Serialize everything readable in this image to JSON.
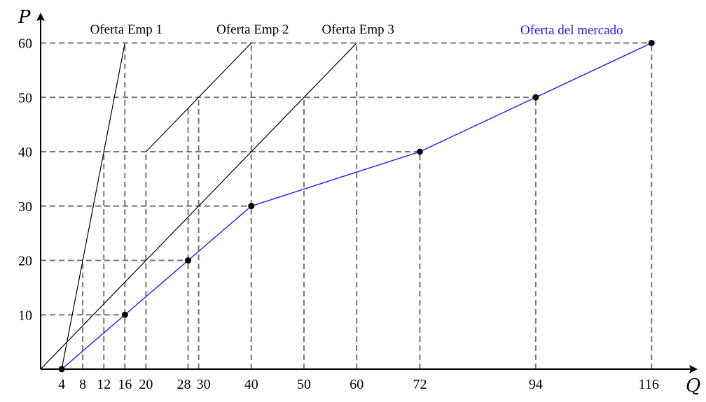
{
  "chart_data": {
    "type": "line",
    "xlabel": "Q",
    "ylabel": "P",
    "xlim": [
      0,
      118
    ],
    "ylim": [
      0,
      63
    ],
    "x_ticks": [
      4,
      8,
      12,
      16,
      20,
      28,
      30,
      40,
      50,
      60,
      72,
      94,
      116
    ],
    "y_ticks": [
      10,
      20,
      30,
      40,
      50,
      60
    ],
    "series": [
      {
        "name": "Oferta Emp 1",
        "color": "#000000",
        "points": [
          [
            4,
            0
          ],
          [
            16,
            60
          ]
        ]
      },
      {
        "name": "Oferta Emp 2",
        "color": "#000000",
        "points": [
          [
            20,
            40
          ],
          [
            40,
            60
          ]
        ]
      },
      {
        "name": "Oferta Emp 3",
        "color": "#000000",
        "points": [
          [
            0,
            0
          ],
          [
            60,
            60
          ]
        ]
      },
      {
        "name": "Oferta del mercado",
        "color": "#1a1aff",
        "points": [
          [
            4,
            0
          ],
          [
            16,
            10
          ],
          [
            28,
            20
          ],
          [
            40,
            30
          ],
          [
            72,
            40
          ],
          [
            94,
            50
          ],
          [
            116,
            60
          ]
        ]
      }
    ],
    "guide_lines_x": [
      8,
      12,
      16,
      20,
      28,
      30,
      40,
      50,
      60,
      72,
      94,
      116
    ],
    "guide_lines_y": [
      10,
      20,
      30,
      40,
      50,
      60
    ],
    "grid": false,
    "legend": "inline-labels-top"
  }
}
